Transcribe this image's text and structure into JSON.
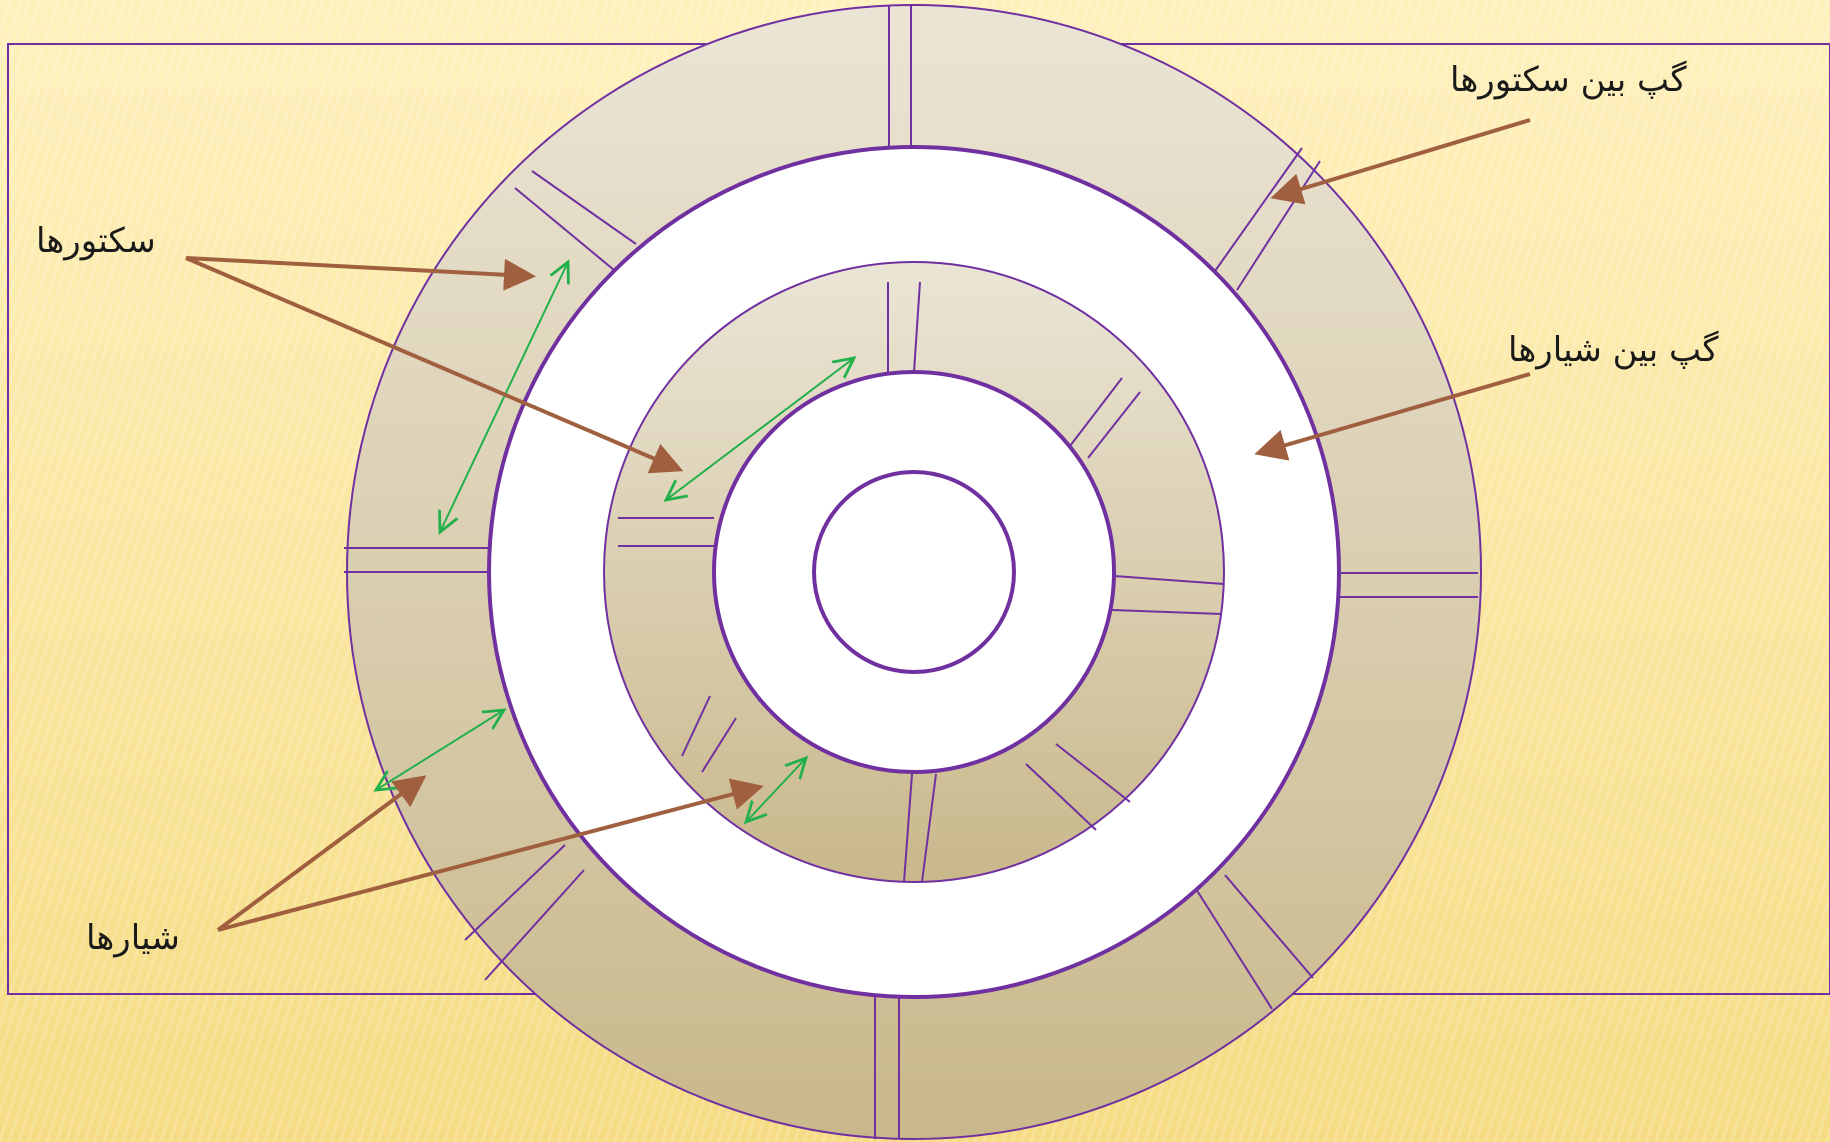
{
  "labels": {
    "sectors": "سکتورها",
    "tracks": "شیارها",
    "sector_gap": "گپ بین سکتورها",
    "track_gap": "گپ بین شیارها"
  },
  "colors": {
    "frame": "#7030a0",
    "disk_top": "#ebe5d6",
    "disk_bottom": "#c9b88b",
    "gap_fill": "#ffffff",
    "callout_arrow": "#a0603f",
    "measure_arrow": "#22b04b"
  }
}
